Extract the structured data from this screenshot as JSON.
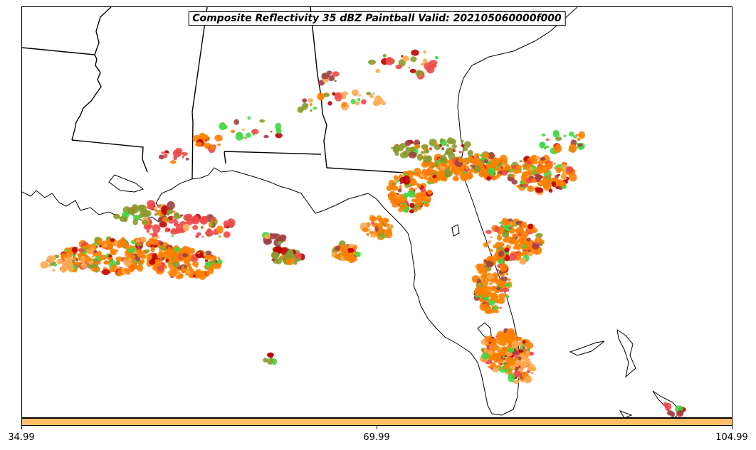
{
  "title": "Composite Reflectivity 35 dBZ Paintball Valid: 202105060000f000",
  "colorbar": {
    "color": "#ffbf66",
    "ticks": [
      "34.99",
      "69.99",
      "104.99"
    ]
  },
  "colors": {
    "orange": "#ff7f00",
    "light_orange": "#ffa84f",
    "red": "#f04848",
    "green": "#3fd83f",
    "olive": "#8a9a2a",
    "brown": "#a04040",
    "dark_red": "#c00000"
  },
  "map_features": [
    "state-borders",
    "coastlines",
    "reflectivity-paintball"
  ]
}
